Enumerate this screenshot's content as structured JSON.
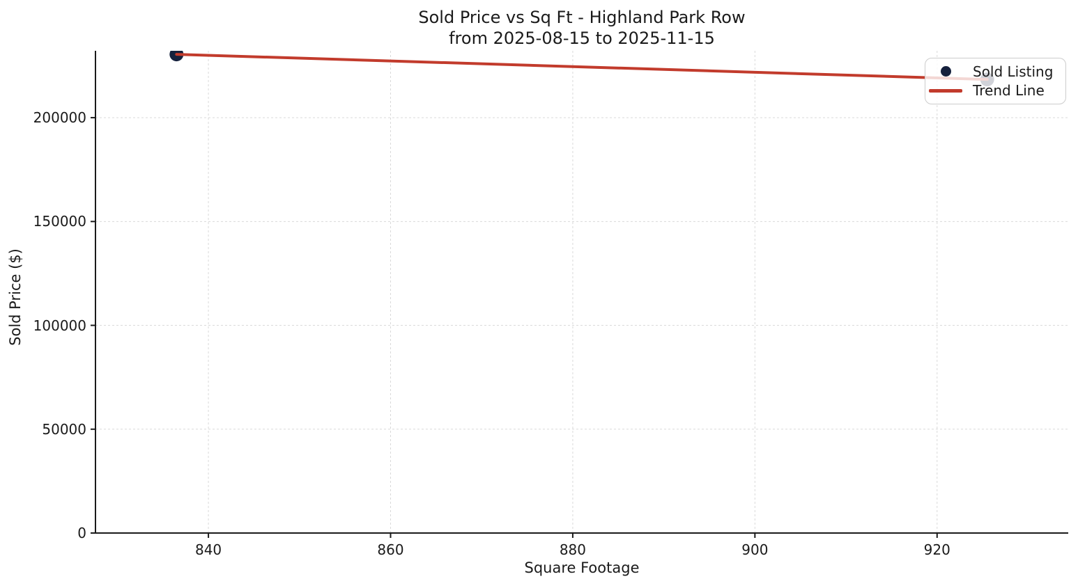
{
  "chart_data": {
    "type": "scatter",
    "title": "Sold Price vs Sq Ft - Highland Park Row",
    "subtitle": "from 2025-08-15 to 2025-11-15",
    "xlabel": "Square Footage",
    "ylabel": "Sold Price ($)",
    "xlim": [
      827.6,
      934.4
    ],
    "ylim": [
      0,
      232200
    ],
    "x_ticks": [
      840,
      860,
      880,
      900,
      920
    ],
    "y_ticks": [
      0,
      50000,
      100000,
      150000,
      200000
    ],
    "grid": {
      "style": "dashed",
      "color": "#d9d9d9",
      "on": true
    },
    "axis_color": "#1a1a1a",
    "series": [
      {
        "name": "Sold Listing",
        "type": "scatter",
        "color": "#15213d",
        "marker_radius": 10,
        "points": [
          {
            "x": 836.5,
            "y": 230500
          },
          {
            "x": 925.5,
            "y": 218400
          }
        ]
      },
      {
        "name": "Trend Line",
        "type": "line",
        "color": "#c23b2c",
        "stroke_width": 4,
        "points": [
          {
            "x": 836.5,
            "y": 230500
          },
          {
            "x": 925.5,
            "y": 218400
          }
        ]
      }
    ],
    "legend": {
      "position": "upper right",
      "entries": [
        {
          "label": "Sold Listing",
          "marker": "dot",
          "color": "#15213d"
        },
        {
          "label": "Trend Line",
          "marker": "line",
          "color": "#c23b2c"
        }
      ]
    }
  }
}
